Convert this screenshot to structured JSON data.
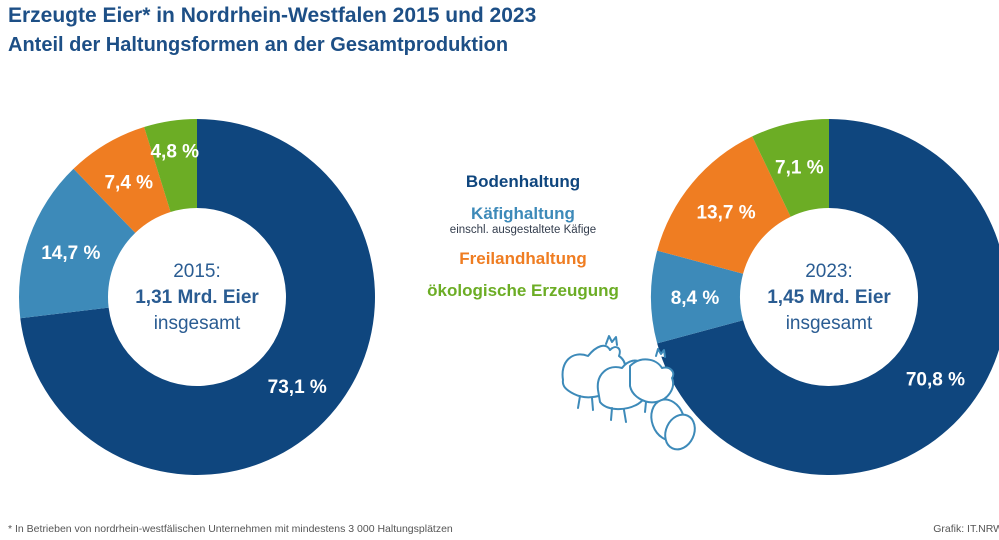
{
  "header": {
    "title": "Erzeugte Eier* in Nordrhein-Westfalen 2015 und 2023",
    "subtitle": "Anteil der Haltungsformen an der Gesamtproduktion"
  },
  "colors": {
    "Bodenhaltung": "#0f467e",
    "Käfighaltung": "#3d8ab9",
    "Freilandhaltung": "#ef7d22",
    "ökologische Erzeugung": "#6cad25",
    "title": "#1d4f86",
    "center_text": "#2a5c92"
  },
  "legend": {
    "items": [
      {
        "label": "Bodenhaltung",
        "sublabel": ""
      },
      {
        "label": "Käfighaltung",
        "sublabel": "einschl. ausgestaltete Käfige"
      },
      {
        "label": "Freilandhaltung",
        "sublabel": ""
      },
      {
        "label": "ökologische Erzeugung",
        "sublabel": ""
      }
    ]
  },
  "icons": [
    "chickens-icon",
    "eggs-icon"
  ],
  "chart_data": [
    {
      "type": "pie",
      "donut": true,
      "center_text": {
        "year": "2015:",
        "total": "1,31 Mrd. Eier",
        "suffix": "insgesamt"
      },
      "categories": [
        "Bodenhaltung",
        "Käfighaltung",
        "Freilandhaltung",
        "ökologische Erzeugung"
      ],
      "values": [
        73.1,
        14.7,
        7.4,
        4.8
      ],
      "labels": [
        "73,1 %",
        "14,7 %",
        "7,4 %",
        "4,8 %"
      ]
    },
    {
      "type": "pie",
      "donut": true,
      "center_text": {
        "year": "2023:",
        "total": "1,45 Mrd. Eier",
        "suffix": "insgesamt"
      },
      "categories": [
        "Bodenhaltung",
        "Käfighaltung",
        "Freilandhaltung",
        "ökologische Erzeugung"
      ],
      "values": [
        70.8,
        8.4,
        13.7,
        7.1
      ],
      "labels": [
        "70,8 %",
        "8,4 %",
        "13,7 %",
        "7,1 %"
      ]
    }
  ],
  "footer": {
    "footnote": "* In Betrieben von nordrhein-westfälischen Unternehmen mit mindestens 3 000 Haltungsplätzen",
    "credit": "Grafik: IT.NRW"
  }
}
